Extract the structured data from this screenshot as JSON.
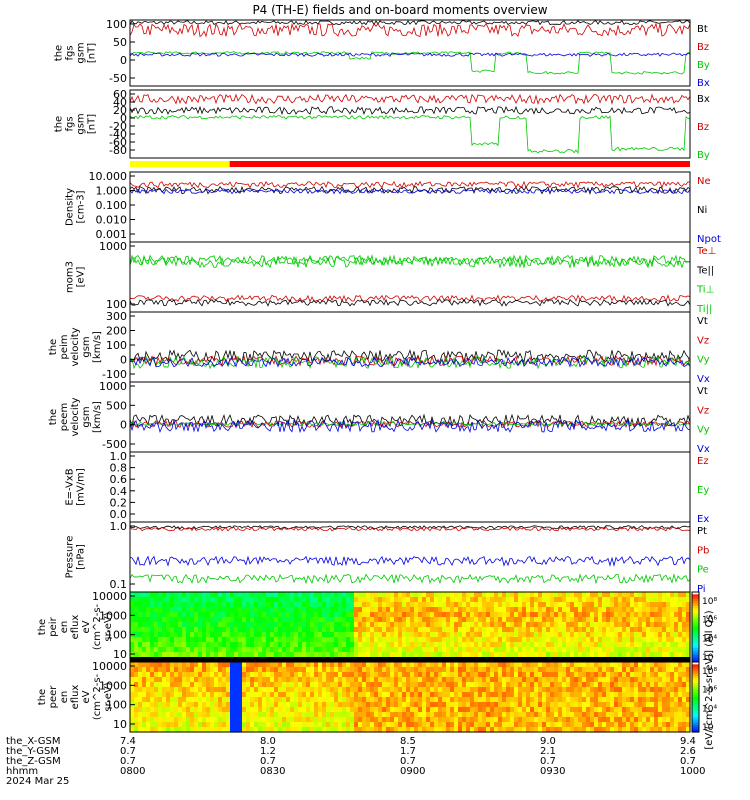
{
  "title": "P4 (TH-E) fields and on-board moments overview",
  "date_label": "2024 Mar 25",
  "colors": {
    "black": "#000000",
    "red": "#d00000",
    "green": "#00c800",
    "blue": "#0000e0"
  },
  "chart_data": [
    {
      "type": "line",
      "id": "fgs_gsm",
      "ylabel": [
        "the",
        "fgs",
        "gsm",
        "[nT]"
      ],
      "yticks": [
        "100",
        "50",
        "0",
        "-50"
      ],
      "ylim": [
        -100,
        100
      ],
      "yscale": "linear",
      "series": [
        {
          "name": "Bt",
          "color": "#000000",
          "base": 92,
          "amp": 6
        },
        {
          "name": "Bz",
          "color": "#d00000",
          "base": 70,
          "amp": 20
        },
        {
          "name": "By",
          "color": "#00c800",
          "base": 0,
          "amp": 4,
          "drops": [
            [
              0.39,
              0.43,
              -15
            ],
            [
              0.61,
              0.65,
              -55
            ],
            [
              0.71,
              0.8,
              -60
            ],
            [
              0.86,
              0.99,
              -60
            ]
          ]
        },
        {
          "name": "Bx",
          "color": "#0000e0",
          "base": -5,
          "amp": 5
        }
      ]
    },
    {
      "type": "line",
      "id": "fgs_dsl",
      "ylabel": [
        "the",
        "fgs",
        "gsm",
        "[nT]"
      ],
      "yticks": [
        "60",
        "40",
        "20",
        "0",
        "-20",
        "-40",
        "-60",
        "-80"
      ],
      "ylim": [
        -90,
        60
      ],
      "yscale": "linear",
      "series": [
        {
          "name": "Bx",
          "color": "#000000",
          "base": 15,
          "amp": 8
        },
        {
          "name": "Bz",
          "color": "#d00000",
          "base": 40,
          "amp": 10
        },
        {
          "name": "By",
          "color": "#00c800",
          "base": 0,
          "amp": 4,
          "drops": [
            [
              0.61,
              0.66,
              -60
            ],
            [
              0.71,
              0.8,
              -75
            ],
            [
              0.86,
              0.99,
              -70
            ]
          ]
        }
      ]
    },
    {
      "type": "line",
      "id": "density",
      "ylabel": [
        "Density",
        "[cm-3]"
      ],
      "yticks": [
        "10.000",
        "1.000",
        "0.100",
        "0.010",
        "0.001"
      ],
      "ylim": [
        0.0005,
        30
      ],
      "yscale": "log",
      "series": [
        {
          "name": "Ne",
          "color": "#d00000",
          "base": 4.5,
          "amp": 2
        },
        {
          "name": "Ni",
          "color": "#000000",
          "base": 2,
          "amp": 1
        },
        {
          "name": "Npot",
          "color": "#0000e0",
          "base": 1.5,
          "amp": 0.5
        }
      ]
    },
    {
      "type": "line",
      "id": "temperature",
      "ylabel": [
        "mom3",
        "[eV]"
      ],
      "yticks": [
        "1000",
        "100"
      ],
      "ylim": [
        80,
        8000
      ],
      "yscale": "log",
      "series": [
        {
          "name": "Te⊥",
          "color": "#d00000",
          "base": 200,
          "amp": 40
        },
        {
          "name": "Te||",
          "color": "#000000",
          "base": 150,
          "amp": 30
        },
        {
          "name": "Ti⊥",
          "color": "#00c800",
          "base": 2500,
          "amp": 800
        },
        {
          "name": "Ti||",
          "color": "#00c800",
          "base": 2200,
          "amp": 700
        }
      ]
    },
    {
      "type": "line",
      "id": "peim_velocity",
      "ylabel": [
        "the",
        "peim",
        "velocity",
        "gsm",
        "[km/s]"
      ],
      "yticks": [
        "300",
        "200",
        "100",
        "0",
        "-100"
      ],
      "ylim": [
        -130,
        330
      ],
      "yscale": "linear",
      "series": [
        {
          "name": "Vt",
          "color": "#000000",
          "base": 40,
          "amp": 40
        },
        {
          "name": "Vz",
          "color": "#d00000",
          "base": 10,
          "amp": 30
        },
        {
          "name": "Vy",
          "color": "#00c800",
          "base": 0,
          "amp": 40
        },
        {
          "name": "Vx",
          "color": "#0000e0",
          "base": 0,
          "amp": 30
        }
      ]
    },
    {
      "type": "line",
      "id": "peem_velocity",
      "ylabel": [
        "the",
        "peem",
        "velocity",
        "gsm",
        "[km/s]"
      ],
      "yticks": [
        "1000",
        "500",
        "0",
        "-500"
      ],
      "ylim": [
        -700,
        1050
      ],
      "yscale": "linear",
      "series": [
        {
          "name": "Vt",
          "color": "#000000",
          "base": 80,
          "amp": 150
        },
        {
          "name": "Vz",
          "color": "#d00000",
          "base": 0,
          "amp": 80
        },
        {
          "name": "Vy",
          "color": "#00c800",
          "base": 0,
          "amp": 40
        },
        {
          "name": "Vx",
          "color": "#0000e0",
          "base": -50,
          "amp": 150
        }
      ]
    },
    {
      "type": "line",
      "id": "e_field",
      "ylabel": [
        "E=-VxB",
        "[mV/m]"
      ],
      "yticks": [
        "1.0",
        "0.8",
        "0.6",
        "0.4",
        "0.2",
        "0.0"
      ],
      "ylim": [
        0,
        1
      ],
      "yscale": "linear",
      "series": [
        {
          "name": "Ez",
          "color": "#d00000"
        },
        {
          "name": "Ey",
          "color": "#00c800"
        },
        {
          "name": "Ex",
          "color": "#0000e0"
        }
      ]
    },
    {
      "type": "line",
      "id": "pressure",
      "ylabel": [
        "Pressure",
        "[nPa]"
      ],
      "yticks": [
        "1.0",
        "0.1"
      ],
      "ylim": [
        0.05,
        12
      ],
      "yscale": "log",
      "series": [
        {
          "name": "Pt",
          "color": "#000000",
          "base": 8,
          "amp": 1
        },
        {
          "name": "Pb",
          "color": "#d00000",
          "base": 7,
          "amp": 1
        },
        {
          "name": "Pe",
          "color": "#00c800",
          "base": 0.15,
          "amp": 0.05
        },
        {
          "name": "Pi",
          "color": "#0000e0",
          "base": 0.6,
          "amp": 0.2
        }
      ]
    },
    {
      "type": "heatmap",
      "id": "peir_spectrogram",
      "ylabel": [
        "the",
        "peir",
        "en",
        "eflux",
        "eV",
        "(cm^2-s-",
        "sr-eV)"
      ],
      "yticks": [
        "10000",
        "1000",
        "100",
        "10"
      ],
      "ylim": [
        5,
        25000
      ],
      "yscale": "log"
    },
    {
      "type": "heatmap",
      "id": "peer_spectrogram",
      "ylabel": [
        "the",
        "peer",
        "en",
        "eflux",
        "eV",
        "(cm^2-s-",
        "sr-eV)"
      ],
      "yticks": [
        "10000",
        "1000",
        "100",
        "10"
      ],
      "ylim": [
        5,
        25000
      ],
      "yscale": "log"
    }
  ],
  "colorbars": [
    {
      "ticks": [
        "10⁸",
        "10⁶",
        "10⁴",
        "10⁲"
      ]
    },
    {
      "ticks": [
        "10⁸",
        "10⁶",
        "10⁴",
        "10⁲"
      ]
    }
  ],
  "colorbar_label": "[eV/(cm^2-s-sr-eV)] (All Qs)",
  "x_axis": {
    "row_labels": [
      "the_X-GSM",
      "the_Y-GSM",
      "the_Z-GSM",
      "hhmm"
    ],
    "columns": [
      {
        "x": "7.4",
        "y": "0.7",
        "z": "0.7",
        "t": "0800"
      },
      {
        "x": "8.0",
        "y": "1.2",
        "z": "0.7",
        "t": "0830"
      },
      {
        "x": "8.5",
        "y": "1.7",
        "z": "0.7",
        "t": "0900"
      },
      {
        "x": "9.0",
        "y": "2.1",
        "z": "0.7",
        "t": "0930"
      },
      {
        "x": "9.4",
        "y": "2.6",
        "z": "0.7",
        "t": "1000"
      }
    ]
  },
  "mode_bar": [
    {
      "from": 0,
      "to": 0.178,
      "color": "#ffff00"
    },
    {
      "from": 0.178,
      "to": 1,
      "color": "#ff0000"
    }
  ]
}
